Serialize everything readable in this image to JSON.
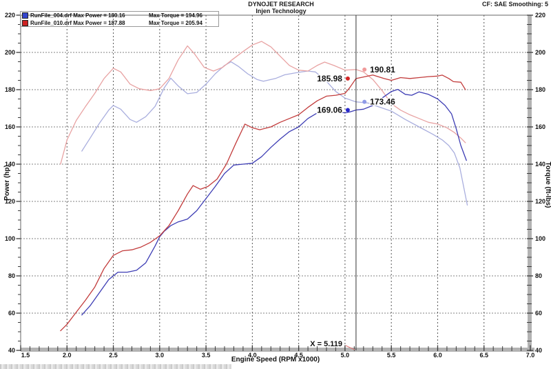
{
  "header": {
    "title": "DYNOJET RESEARCH",
    "subtitle": "Injen Technology",
    "correction": "CF: SAE  Smoothing: 5"
  },
  "legend": {
    "rows": [
      {
        "swatch_color": "#3344cc",
        "file_and_power": "RunFile_004.drf Max Power = 180.16",
        "torque": "Max Torque = 194.96"
      },
      {
        "swatch_color": "#cc2222",
        "file_and_power": "RunFile_010.drf Max Power = 187.88",
        "torque": "Max Torque = 205.94"
      }
    ]
  },
  "cursor": {
    "x_label": "X = 5.119",
    "rpm": 5.119,
    "markers": [
      {
        "label": "185.98",
        "value": 185.98,
        "rpm": 5.03,
        "color": "#d42525",
        "side": "left",
        "series": "RunFile_010 Power"
      },
      {
        "label": "190.81",
        "value": 190.81,
        "rpm": 5.21,
        "color": "#f09a9a",
        "side": "right",
        "series": "RunFile_010 Torque"
      },
      {
        "label": "169.06",
        "value": 169.06,
        "rpm": 5.03,
        "color": "#2828cc",
        "side": "left",
        "series": "RunFile_004 Power"
      },
      {
        "label": "173.46",
        "value": 173.46,
        "rpm": 5.21,
        "color": "#8f9ae8",
        "side": "right",
        "series": "RunFile_004 Torque"
      }
    ]
  },
  "chart_data": {
    "type": "line",
    "title": "DYNOJET RESEARCH",
    "subtitle": "Injen Technology",
    "xlabel": "Engine Speed (RPM x1000)",
    "ylabel_left": "Power (hp)",
    "ylabel_right": "Torque (ft-lbs)",
    "x_axis": {
      "min": 1.5,
      "max": 7.0,
      "major_step": 0.5,
      "minor_step": 0.1
    },
    "y_axis": {
      "min": 40,
      "max": 220,
      "major_step": 20,
      "minor_step": 5
    },
    "grid": true,
    "legend_position": "top-left",
    "series": [
      {
        "name": "RunFile_004 Torque",
        "unit": "ft-lbs",
        "max": 194.96,
        "color": "#a9aede",
        "points": [
          [
            2.16,
            147
          ],
          [
            2.25,
            154
          ],
          [
            2.35,
            162
          ],
          [
            2.45,
            169
          ],
          [
            2.5,
            171.5
          ],
          [
            2.58,
            169.5
          ],
          [
            2.68,
            164
          ],
          [
            2.75,
            162.5
          ],
          [
            2.85,
            165.5
          ],
          [
            2.95,
            171
          ],
          [
            3.05,
            181
          ],
          [
            3.12,
            186.2
          ],
          [
            3.2,
            182
          ],
          [
            3.3,
            177.8
          ],
          [
            3.4,
            178.5
          ],
          [
            3.5,
            183
          ],
          [
            3.6,
            188.5
          ],
          [
            3.7,
            193
          ],
          [
            3.77,
            194.96
          ],
          [
            3.85,
            192.5
          ],
          [
            3.95,
            188.5
          ],
          [
            4.05,
            185.5
          ],
          [
            4.12,
            184.5
          ],
          [
            4.25,
            186
          ],
          [
            4.35,
            188
          ],
          [
            4.5,
            189.3
          ],
          [
            4.6,
            190
          ],
          [
            4.68,
            189.5
          ],
          [
            4.8,
            184.5
          ],
          [
            4.9,
            179
          ],
          [
            5.0,
            175.5
          ],
          [
            5.119,
            173.46
          ],
          [
            5.25,
            172.8
          ],
          [
            5.35,
            171
          ],
          [
            5.5,
            168.5
          ],
          [
            5.65,
            164
          ],
          [
            5.8,
            160
          ],
          [
            5.95,
            156
          ],
          [
            6.05,
            153
          ],
          [
            6.12,
            150
          ],
          [
            6.18,
            146
          ],
          [
            6.24,
            138
          ],
          [
            6.28,
            128
          ],
          [
            6.32,
            118
          ]
        ]
      },
      {
        "name": "RunFile_010 Torque",
        "unit": "ft-lbs",
        "max": 205.94,
        "color": "#e8a2a2",
        "points": [
          [
            1.93,
            140
          ],
          [
            2.0,
            153
          ],
          [
            2.1,
            163.5
          ],
          [
            2.2,
            171
          ],
          [
            2.3,
            178
          ],
          [
            2.4,
            186
          ],
          [
            2.5,
            191.5
          ],
          [
            2.58,
            189.5
          ],
          [
            2.68,
            183
          ],
          [
            2.78,
            180.5
          ],
          [
            2.9,
            179.5
          ],
          [
            3.0,
            180.5
          ],
          [
            3.1,
            186
          ],
          [
            3.2,
            196
          ],
          [
            3.3,
            203.5
          ],
          [
            3.38,
            199
          ],
          [
            3.48,
            192
          ],
          [
            3.58,
            190
          ],
          [
            3.68,
            192
          ],
          [
            3.78,
            196
          ],
          [
            3.9,
            200.5
          ],
          [
            4.0,
            204
          ],
          [
            4.1,
            205.94
          ],
          [
            4.2,
            203
          ],
          [
            4.3,
            198
          ],
          [
            4.4,
            193
          ],
          [
            4.5,
            190.5
          ],
          [
            4.6,
            190
          ],
          [
            4.7,
            193
          ],
          [
            4.78,
            194.8
          ],
          [
            4.88,
            193
          ],
          [
            5.0,
            190.5
          ],
          [
            5.119,
            190.81
          ],
          [
            5.2,
            189.5
          ],
          [
            5.3,
            185.5
          ],
          [
            5.4,
            179.5
          ],
          [
            5.5,
            172.5
          ],
          [
            5.6,
            169
          ],
          [
            5.7,
            166.5
          ],
          [
            5.8,
            164.5
          ],
          [
            5.9,
            162.5
          ],
          [
            6.0,
            161.5
          ],
          [
            6.1,
            159.5
          ],
          [
            6.18,
            157
          ],
          [
            6.25,
            154
          ],
          [
            6.3,
            151.5
          ]
        ]
      },
      {
        "name": "RunFile_004 Power",
        "unit": "hp",
        "max": 180.16,
        "color": "#3c3cb4",
        "points": [
          [
            2.16,
            59
          ],
          [
            2.25,
            64
          ],
          [
            2.35,
            71
          ],
          [
            2.45,
            78
          ],
          [
            2.55,
            82
          ],
          [
            2.65,
            82
          ],
          [
            2.75,
            83
          ],
          [
            2.85,
            87
          ],
          [
            2.95,
            96
          ],
          [
            3.0,
            101
          ],
          [
            3.05,
            104
          ],
          [
            3.12,
            107
          ],
          [
            3.2,
            109
          ],
          [
            3.3,
            110.5
          ],
          [
            3.4,
            115
          ],
          [
            3.5,
            121.5
          ],
          [
            3.6,
            128
          ],
          [
            3.7,
            135
          ],
          [
            3.8,
            139.5
          ],
          [
            3.9,
            140
          ],
          [
            4.0,
            140.5
          ],
          [
            4.1,
            144
          ],
          [
            4.2,
            149
          ],
          [
            4.3,
            153.5
          ],
          [
            4.4,
            157.5
          ],
          [
            4.5,
            160
          ],
          [
            4.6,
            164.5
          ],
          [
            4.7,
            167.5
          ],
          [
            4.8,
            168
          ],
          [
            4.9,
            168.5
          ],
          [
            5.0,
            167.5
          ],
          [
            5.05,
            168
          ],
          [
            5.119,
            169.06
          ],
          [
            5.2,
            169.5
          ],
          [
            5.3,
            171.5
          ],
          [
            5.4,
            175.5
          ],
          [
            5.5,
            179
          ],
          [
            5.57,
            180.16
          ],
          [
            5.65,
            177.5
          ],
          [
            5.72,
            177
          ],
          [
            5.8,
            178.8
          ],
          [
            5.9,
            177.5
          ],
          [
            6.0,
            175
          ],
          [
            6.08,
            171.5
          ],
          [
            6.15,
            167
          ],
          [
            6.2,
            159
          ],
          [
            6.25,
            150
          ],
          [
            6.31,
            142
          ]
        ]
      },
      {
        "name": "RunFile_010 Power",
        "unit": "hp",
        "max": 187.88,
        "color": "#c23b3b",
        "points": [
          [
            1.93,
            50.5
          ],
          [
            2.0,
            54
          ],
          [
            2.1,
            60.5
          ],
          [
            2.2,
            67
          ],
          [
            2.3,
            74
          ],
          [
            2.4,
            84
          ],
          [
            2.5,
            91
          ],
          [
            2.6,
            93.5
          ],
          [
            2.7,
            94
          ],
          [
            2.8,
            95.5
          ],
          [
            2.9,
            98
          ],
          [
            3.0,
            101.5
          ],
          [
            3.1,
            107
          ],
          [
            3.2,
            115
          ],
          [
            3.3,
            124
          ],
          [
            3.36,
            128.5
          ],
          [
            3.44,
            126.5
          ],
          [
            3.52,
            128
          ],
          [
            3.62,
            132
          ],
          [
            3.72,
            140
          ],
          [
            3.82,
            151
          ],
          [
            3.92,
            161.5
          ],
          [
            4.0,
            159.5
          ],
          [
            4.08,
            158.5
          ],
          [
            4.2,
            160
          ],
          [
            4.3,
            162.5
          ],
          [
            4.4,
            164.5
          ],
          [
            4.5,
            166.5
          ],
          [
            4.6,
            170.5
          ],
          [
            4.7,
            174
          ],
          [
            4.8,
            176.5
          ],
          [
            4.9,
            177
          ],
          [
            5.0,
            178
          ],
          [
            5.05,
            181
          ],
          [
            5.119,
            185.98
          ],
          [
            5.2,
            186.8
          ],
          [
            5.3,
            187.88
          ],
          [
            5.42,
            186
          ],
          [
            5.5,
            185
          ],
          [
            5.6,
            186.5
          ],
          [
            5.7,
            186
          ],
          [
            5.8,
            186.5
          ],
          [
            5.9,
            187
          ],
          [
            6.0,
            187.3
          ],
          [
            6.05,
            187.8
          ],
          [
            6.12,
            186
          ],
          [
            6.17,
            184.3
          ],
          [
            6.25,
            184
          ],
          [
            6.3,
            180
          ]
        ]
      }
    ]
  },
  "style": {
    "grid_v_color": "#555555",
    "grid_h_color": "#828282",
    "axis_bar_color": "#b3b3b3",
    "frame_color": "#666666",
    "tick_color": "#3a3a3a",
    "cursor_color": "#333333",
    "pointer_color": "#e07070"
  }
}
